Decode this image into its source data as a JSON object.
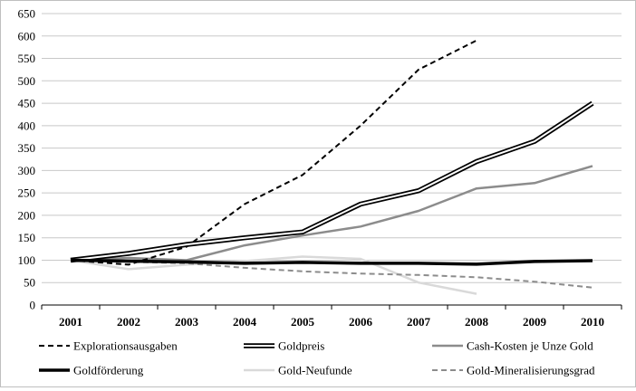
{
  "chart_data": {
    "type": "line",
    "title": "",
    "xlabel": "",
    "ylabel": "",
    "x": [
      "2001",
      "2002",
      "2003",
      "2004",
      "2005",
      "2006",
      "2007",
      "2008",
      "2009",
      "2010"
    ],
    "y_ticks": [
      "0",
      "50",
      "100",
      "150",
      "200",
      "250",
      "300",
      "350",
      "400",
      "450",
      "500",
      "550",
      "600",
      "650"
    ],
    "ylim": [
      0,
      650
    ],
    "grid": "horizontal",
    "legend_position": "bottom",
    "series": [
      {
        "name": "Explorationsausgaben",
        "style": "dashed-black",
        "values": [
          100,
          90,
          130,
          225,
          290,
          400,
          525,
          590,
          null,
          null
        ]
      },
      {
        "name": "Goldpreis",
        "style": "double-black",
        "values": [
          100,
          115,
          135,
          150,
          163,
          225,
          255,
          320,
          365,
          450
        ]
      },
      {
        "name": "Cash-Kosten je Unze Gold",
        "style": "solid-gray",
        "values": [
          100,
          105,
          100,
          133,
          155,
          175,
          210,
          260,
          272,
          310
        ]
      },
      {
        "name": "Goldförderung",
        "style": "thick-black",
        "values": [
          100,
          98,
          96,
          93,
          95,
          93,
          93,
          91,
          97,
          99
        ]
      },
      {
        "name": "Gold-Neufunde",
        "style": "light-gray",
        "values": [
          100,
          80,
          90,
          98,
          108,
          103,
          50,
          25,
          null,
          null
        ]
      },
      {
        "name": "Gold-Mineralisierungsgrad",
        "style": "dashed-gray",
        "values": [
          100,
          96,
          93,
          83,
          75,
          70,
          67,
          62,
          52,
          39
        ]
      }
    ]
  },
  "colors": {
    "black": "#000000",
    "gray": "#8c8c8c",
    "light_gray": "#d9d9d9",
    "grid": "#c8c8c8"
  }
}
